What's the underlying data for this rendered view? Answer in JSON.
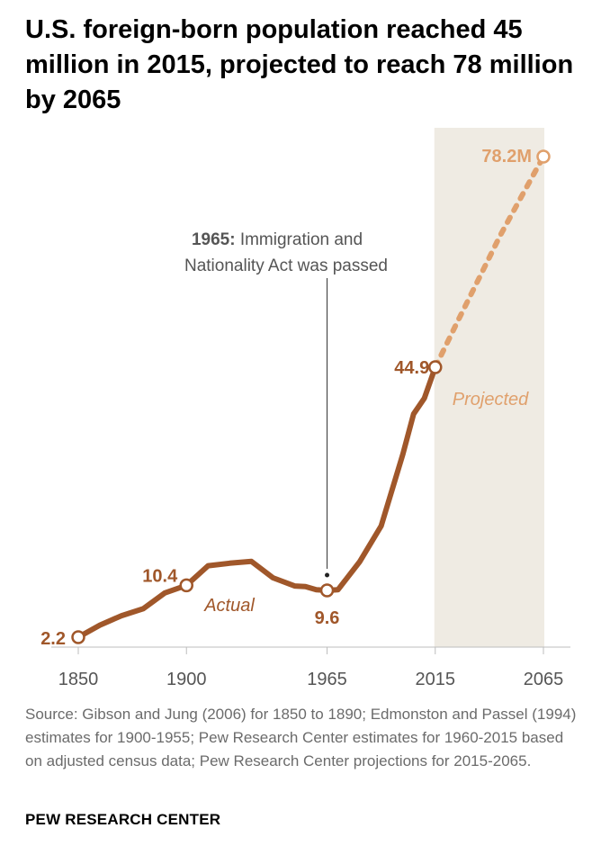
{
  "title": "U.S. foreign-born population reached 45 million in 2015, projected to reach 78 million by 2065",
  "source": "Source: Gibson and Jung (2006) for 1850 to 1890; Edmonston and Passel (1994) estimates for 1900-1955; Pew Research Center estimates for 1960-2015 based on adjusted census data; Pew Research Center projections for 2015-2065.",
  "brand": "PEW RESEARCH CENTER",
  "colors": {
    "actual": "#a0572a",
    "projected": "#e0a06c",
    "projection_band": "#efebe3",
    "axis": "#bdbdbd",
    "annotation": "#555555"
  },
  "chart_data": {
    "type": "line",
    "title": "U.S. foreign-born population reached 45 million in 2015, projected to reach 78 million by 2065",
    "units": "millions",
    "xlabel": "",
    "ylabel": "",
    "xlim": [
      1850,
      2065
    ],
    "ylim": [
      2.2,
      78.2
    ],
    "x_ticks": [
      1850,
      1900,
      1965,
      2015,
      2065
    ],
    "grid": false,
    "series": [
      {
        "name": "Actual",
        "style": "solid",
        "x": [
          1850,
          1860,
          1870,
          1880,
          1890,
          1900,
          1910,
          1920,
          1930,
          1940,
          1950,
          1955,
          1960,
          1965,
          1970,
          1980,
          1990,
          2000,
          2005,
          2010,
          2015
        ],
        "y": [
          2.2,
          4.1,
          5.6,
          6.7,
          9.2,
          10.4,
          13.5,
          13.9,
          14.2,
          11.6,
          10.3,
          10.2,
          9.7,
          9.6,
          9.7,
          14.1,
          19.8,
          31.1,
          37.5,
          40.0,
          44.9
        ]
      },
      {
        "name": "Projected",
        "style": "dotted",
        "x": [
          2015,
          2025,
          2035,
          2045,
          2055,
          2065
        ],
        "y": [
          44.9,
          51.9,
          58.8,
          65.7,
          72.0,
          78.2
        ]
      }
    ],
    "labeled_points": [
      {
        "x": 1850,
        "y": 2.2,
        "label": "2.2",
        "series": "Actual"
      },
      {
        "x": 1900,
        "y": 10.4,
        "label": "10.4",
        "series": "Actual"
      },
      {
        "x": 1965,
        "y": 9.6,
        "label": "9.6",
        "series": "Actual"
      },
      {
        "x": 2015,
        "y": 44.9,
        "label": "44.9",
        "series": "Actual"
      },
      {
        "x": 2065,
        "y": 78.2,
        "label": "78.2M",
        "series": "Projected"
      }
    ],
    "series_labels": {
      "actual": "Actual",
      "projected": "Projected"
    },
    "projection_range": [
      2015,
      2065
    ],
    "annotation": {
      "x": 1965,
      "bold": "1965:",
      "text_line1": "Immigration and",
      "text_line2": "Nationality Act was passed"
    }
  }
}
